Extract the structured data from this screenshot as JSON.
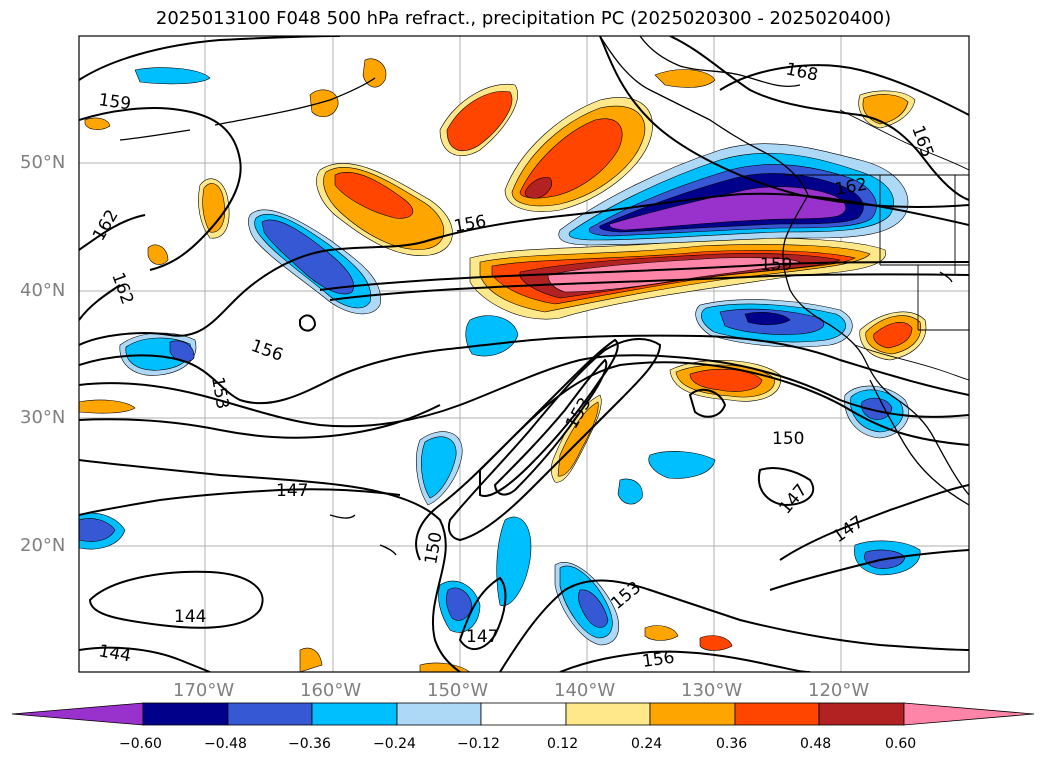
{
  "title": "2025013100 F048 500 hPa refract., precipitation PC (2025020300 - 2025020400)",
  "map": {
    "lat_labels": [
      "50°N",
      "40°N",
      "30°N",
      "20°N"
    ],
    "lon_labels": [
      "170°W",
      "160°W",
      "150°W",
      "140°W",
      "130°W",
      "120°W"
    ],
    "contour_labels": [
      "159",
      "168",
      "165",
      "162",
      "162",
      "156",
      "159",
      "162",
      "156",
      "153",
      "150",
      "153",
      "147",
      "150",
      "147",
      "147",
      "144",
      "144",
      "147",
      "153",
      "156"
    ],
    "gridline_color": "#b0b0b0"
  },
  "colorbar": {
    "ticks": [
      "−0.60",
      "−0.48",
      "−0.36",
      "−0.24",
      "−0.12",
      "0.12",
      "0.24",
      "0.36",
      "0.48",
      "0.60"
    ],
    "colors": [
      "#9932cc",
      "#00008b",
      "#3658d4",
      "#00bfff",
      "#add8f6",
      "#ffffff",
      "#ffe88a",
      "#ffa500",
      "#ff4500",
      "#b22222",
      "#ff85a8"
    ]
  }
}
